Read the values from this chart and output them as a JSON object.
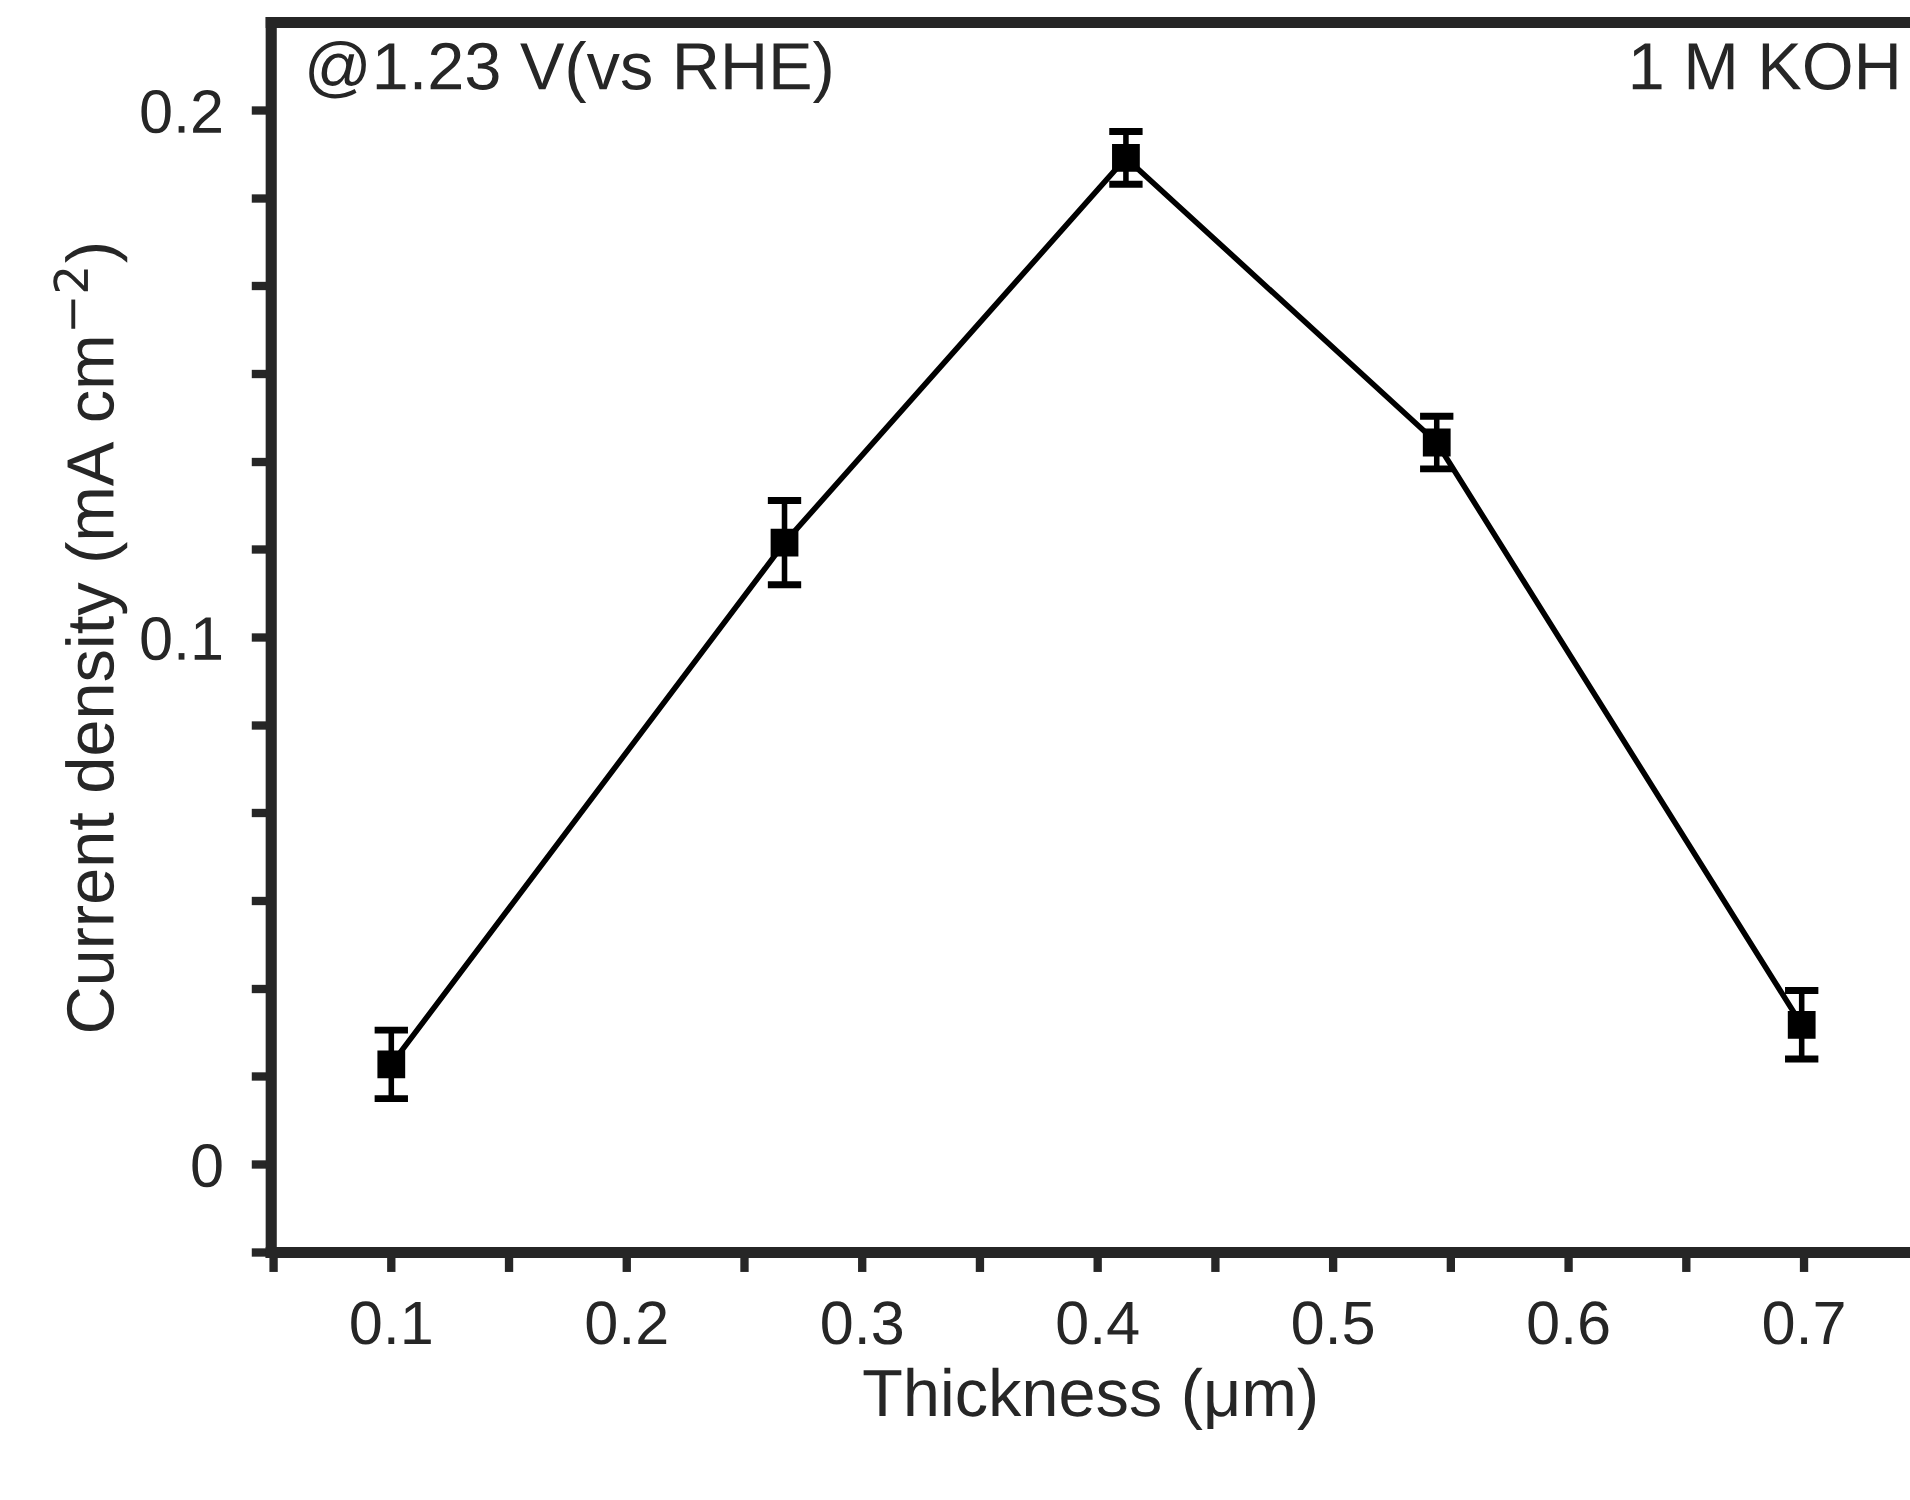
{
  "chart_data": {
    "type": "line",
    "xlabel": "Thickness (μm)",
    "ylabel": "Current density (mA cm$^{−2}$)",
    "annotations": [
      "@1.23 V(vs RHE)",
      "1 M KOH"
    ],
    "x": [
      0.1,
      0.267,
      0.412,
      0.544,
      0.699
    ],
    "series": [
      {
        "color": "#000000",
        "values": [
          0.019,
          0.118,
          0.191,
          0.137,
          0.0265
        ],
        "errors": [
          0.0065,
          0.008,
          0.005,
          0.005,
          0.0065
        ]
      }
    ],
    "marker": "square",
    "line_style": "solid",
    "grid": false,
    "legend": false,
    "xlim": [
      0.049,
      0.745
    ],
    "xticks": [
      {
        "value": 0.05,
        "label": null
      },
      0.1,
      {
        "value": 0.15,
        "label": null
      },
      0.2,
      {
        "value": 0.25,
        "label": null
      },
      0.3,
      {
        "value": 0.35,
        "label": null
      },
      0.4,
      {
        "value": 0.45,
        "label": null
      },
      0.5,
      {
        "value": 0.55,
        "label": null
      },
      0.6,
      {
        "value": 0.65,
        "label": null
      },
      0.7
    ],
    "ylim": [
      -0.0167,
      0.2167
    ],
    "yticks": [
      {
        "value": -0.0167,
        "label": null
      },
      0,
      {
        "value": 0.0167,
        "label": null
      },
      {
        "value": 0.0333,
        "label": null
      },
      {
        "value": 0.05,
        "label": null
      },
      {
        "value": 0.0667,
        "label": null
      },
      {
        "value": 0.0833,
        "label": null
      },
      0.1,
      {
        "value": 0.1167,
        "label": null
      },
      {
        "value": 0.1333,
        "label": null
      },
      {
        "value": 0.15,
        "label": null
      },
      {
        "value": 0.1667,
        "label": null
      },
      {
        "value": 0.1833,
        "label": null
      },
      0.2
    ]
  }
}
